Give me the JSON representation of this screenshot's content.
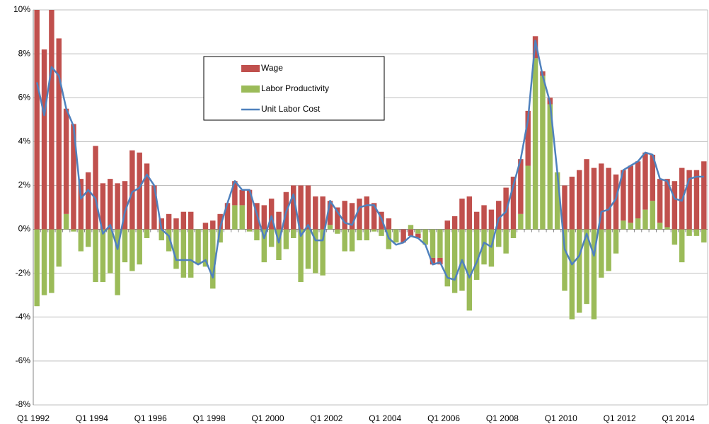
{
  "chart_data": {
    "type": "bar",
    "categories": [
      "Q1 1992",
      null,
      null,
      null,
      null,
      null,
      null,
      null,
      "Q1 1994",
      null,
      null,
      null,
      null,
      null,
      null,
      null,
      "Q1 1996",
      null,
      null,
      null,
      null,
      null,
      null,
      null,
      "Q1 1998",
      null,
      null,
      null,
      null,
      null,
      null,
      null,
      "Q1 2000",
      null,
      null,
      null,
      null,
      null,
      null,
      null,
      "Q1 2002",
      null,
      null,
      null,
      null,
      null,
      null,
      null,
      "Q1 2004",
      null,
      null,
      null,
      null,
      null,
      null,
      null,
      "Q1 2006",
      null,
      null,
      null,
      null,
      null,
      null,
      null,
      "Q1 2008",
      null,
      null,
      null,
      null,
      null,
      null,
      null,
      "Q1 2010",
      null,
      null,
      null,
      null,
      null,
      null,
      null,
      "Q1 2012",
      null,
      null,
      null,
      null,
      null,
      null,
      null,
      "Q1 2014",
      null,
      null,
      null
    ],
    "series": [
      {
        "name": "Wage",
        "type": "bar",
        "color": "#c0504d",
        "values": [
          10.2,
          8.2,
          10.3,
          8.7,
          4.8,
          4.8,
          2.3,
          2.6,
          3.8,
          2.1,
          2.3,
          2.1,
          2.2,
          3.6,
          3.5,
          3.0,
          2.0,
          0.5,
          0.7,
          0.5,
          0.8,
          0.8,
          0,
          0.3,
          0.4,
          0.7,
          1.2,
          1.1,
          0.7,
          1.8,
          1.2,
          1.1,
          1.4,
          0.8,
          1.7,
          2.0,
          2.0,
          2.0,
          1.5,
          1.5,
          1.1,
          1.0,
          1.3,
          1.2,
          1.4,
          1.5,
          1.2,
          0.8,
          0.5,
          0,
          -0.6,
          -0.3,
          -0.2,
          0,
          -0.3,
          -0.3,
          0.4,
          0.6,
          1.4,
          1.5,
          0.8,
          1.1,
          0.9,
          1.3,
          1.9,
          2.4,
          2.5,
          2.5,
          1.0,
          0.2,
          0.3,
          0,
          2.0,
          2.4,
          2.7,
          3.2,
          2.8,
          3.0,
          2.8,
          2.5,
          2.3,
          2.6,
          2.6,
          2.6,
          2.1,
          2.0,
          2.2,
          2.2,
          2.8,
          2.7,
          2.7,
          3.1
        ]
      },
      {
        "name": "Labor Productivity",
        "type": "bar",
        "color": "#9bbb59",
        "values": [
          -3.5,
          -3.0,
          -2.9,
          -1.7,
          0.7,
          -0.1,
          -1.0,
          -0.8,
          -2.4,
          -2.4,
          -2.0,
          -3.0,
          -1.5,
          -1.9,
          -1.6,
          -0.4,
          0,
          -0.5,
          -1.0,
          -1.8,
          -2.2,
          -2.2,
          -1.6,
          -1.7,
          -2.7,
          -0.6,
          0,
          1.1,
          1.1,
          -0.1,
          -0.5,
          -1.5,
          -0.8,
          -1.4,
          -0.9,
          -0.4,
          -2.4,
          -1.8,
          -2.0,
          -2.1,
          0.2,
          -0.2,
          -1.0,
          -1.0,
          -0.5,
          -0.5,
          -0.1,
          -0.3,
          -0.9,
          -0.6,
          0,
          0.2,
          -0.2,
          -0.7,
          -1.3,
          -1.3,
          -2.6,
          -2.9,
          -2.8,
          -3.7,
          -2.3,
          -1.6,
          -1.7,
          -0.8,
          -1.1,
          -0.4,
          0.7,
          2.9,
          7.8,
          7.0,
          5.7,
          2.6,
          -2.8,
          -4.1,
          -3.8,
          -3.4,
          -4.1,
          -2.2,
          -1.9,
          -1.1,
          0.4,
          0.3,
          0.5,
          0.9,
          1.3,
          0.3,
          0.1,
          -0.7,
          -1.5,
          -0.3,
          -0.3,
          -0.6
        ]
      },
      {
        "name": "Unit Labor Cost",
        "type": "line",
        "color": "#4f81bd",
        "values": [
          6.7,
          5.2,
          7.4,
          7.0,
          5.5,
          4.7,
          1.4,
          1.8,
          1.4,
          -0.2,
          0.2,
          -0.9,
          0.8,
          1.7,
          1.9,
          2.5,
          2.0,
          0.0,
          -0.3,
          -1.4,
          -1.4,
          -1.4,
          -1.6,
          -1.4,
          -2.2,
          0.1,
          1.2,
          2.2,
          1.8,
          1.8,
          0.7,
          -0.4,
          0.6,
          -0.6,
          0.8,
          1.6,
          -0.3,
          0.2,
          -0.5,
          -0.5,
          1.3,
          0.8,
          0.3,
          0.2,
          1.0,
          1.1,
          1.1,
          0.5,
          -0.4,
          -0.7,
          -0.6,
          -0.3,
          -0.4,
          -0.7,
          -1.6,
          -1.5,
          -2.2,
          -2.3,
          -1.4,
          -2.2,
          -1.5,
          -0.6,
          -0.8,
          0.5,
          0.8,
          2.0,
          3.2,
          5.0,
          8.6,
          7.0,
          5.8,
          2.6,
          -0.9,
          -1.6,
          -1.2,
          -0.2,
          -1.2,
          0.8,
          0.9,
          1.4,
          2.7,
          2.9,
          3.1,
          3.5,
          3.4,
          2.3,
          2.2,
          1.4,
          1.3,
          2.3,
          2.4,
          2.4
        ]
      }
    ],
    "ylim": [
      -8,
      10
    ],
    "yticks": [
      {
        "value": -8,
        "label": "-8%"
      },
      {
        "value": -6,
        "label": "-6%"
      },
      {
        "value": -4,
        "label": "-4%"
      },
      {
        "value": -2,
        "label": "-2%"
      },
      {
        "value": 0,
        "label": "0%"
      },
      {
        "value": 2,
        "label": "2%"
      },
      {
        "value": 4,
        "label": "4%"
      },
      {
        "value": 6,
        "label": "6%"
      },
      {
        "value": 8,
        "label": "8%"
      },
      {
        "value": 10,
        "label": "10%"
      }
    ],
    "grid": true
  }
}
